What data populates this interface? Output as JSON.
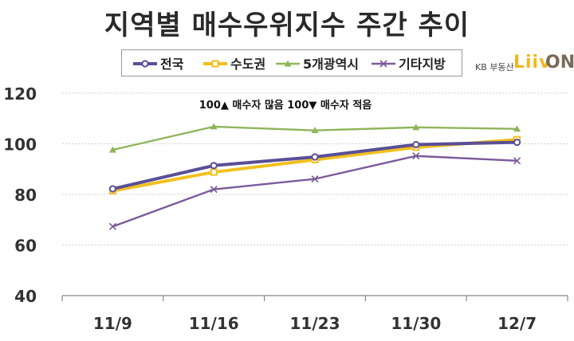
{
  "title": "지역별 매수우위지수 주간 추이",
  "logo": {
    "small_text": "KB 부동산",
    "brand": "Liiv",
    "suffix": "ON"
  },
  "chart_data": {
    "type": "line",
    "title": "지역별 매수우위지수 주간 추이",
    "categories": [
      "11/9",
      "11/16",
      "11/23",
      "11/30",
      "12/7"
    ],
    "ylim": [
      40,
      120
    ],
    "yticks": [
      40,
      60,
      80,
      100,
      120
    ],
    "grid": true,
    "legend_position": "top",
    "annotation": "100▲ 매수자 많음 100▼ 매수자 적음",
    "series": [
      {
        "name": "전국",
        "color": "#5a4f96",
        "marker": "circle",
        "values": [
          82.2,
          91.4,
          94.8,
          99.7,
          100.6
        ]
      },
      {
        "name": "수도권",
        "color": "#f2c01e",
        "marker": "square",
        "values": [
          81.4,
          88.8,
          93.7,
          98.6,
          101.7
        ]
      },
      {
        "name": "5개광역시",
        "color": "#8fb55a",
        "marker": "triangle",
        "values": [
          97.6,
          106.8,
          105.3,
          106.5,
          105.9
        ]
      },
      {
        "name": "기타지방",
        "color": "#7b5a9c",
        "marker": "x",
        "values": [
          67.3,
          82.0,
          86.1,
          95.2,
          93.3
        ]
      }
    ]
  }
}
